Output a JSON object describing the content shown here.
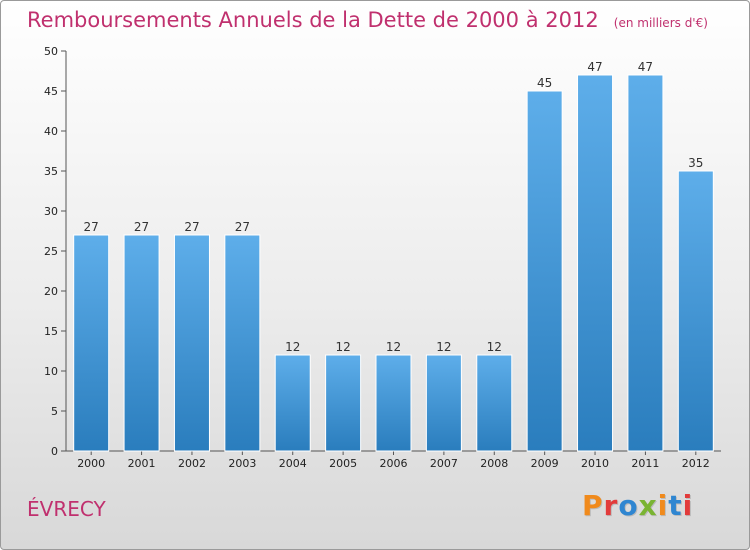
{
  "header": {
    "title": "Remboursements Annuels de la Dette de 2000 à 2012",
    "subtitle": "(en milliers d'€)"
  },
  "footer": {
    "commune": "ÉVRECY",
    "logo": "Proxiti"
  },
  "colors": {
    "title": "#c0306e",
    "bar_top": "#5eaeea",
    "bar_bottom": "#2a7dbd",
    "logo_letters": [
      "#f08a1c",
      "#e23b3b",
      "#2f86d1",
      "#7ab432",
      "#f08a1c",
      "#2f86d1",
      "#e23b3b"
    ]
  },
  "chart_data": {
    "type": "bar",
    "title": "Remboursements Annuels de la Dette de 2000 à 2012",
    "subtitle": "(en milliers d'€)",
    "categories": [
      "2000",
      "2001",
      "2002",
      "2003",
      "2004",
      "2005",
      "2006",
      "2007",
      "2008",
      "2009",
      "2010",
      "2011",
      "2012"
    ],
    "values": [
      27,
      27,
      27,
      27,
      12,
      12,
      12,
      12,
      12,
      45,
      47,
      47,
      35
    ],
    "xlabel": "",
    "ylabel": "",
    "ylim": [
      0,
      50
    ],
    "yticks": [
      0,
      5,
      10,
      15,
      20,
      25,
      30,
      35,
      40,
      45,
      50
    ],
    "grid": false,
    "data_labels": true
  }
}
